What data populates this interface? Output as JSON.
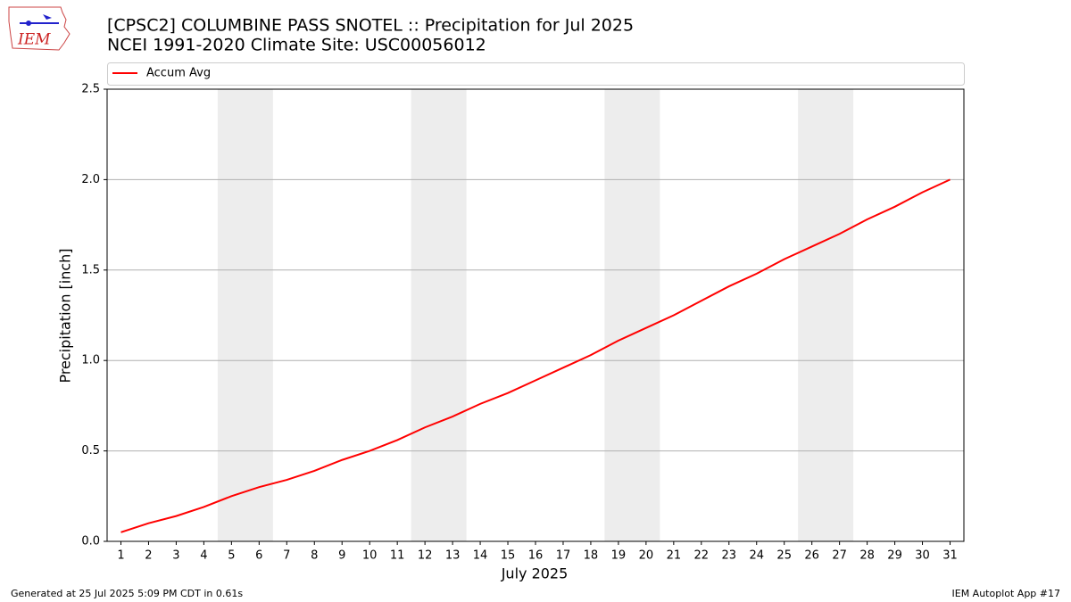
{
  "logo_text": "IEM",
  "chart_data": {
    "type": "line",
    "title": "[CPSC2] COLUMBINE PASS SNOTEL :: Precipitation for Jul 2025",
    "subtitle": "NCEI 1991-2020 Climate Site: USC00056012",
    "x_label": "July 2025",
    "y_label": "Precipitation [inch]",
    "x": [
      1,
      2,
      3,
      4,
      5,
      6,
      7,
      8,
      9,
      10,
      11,
      12,
      13,
      14,
      15,
      16,
      17,
      18,
      19,
      20,
      21,
      22,
      23,
      24,
      25,
      26,
      27,
      28,
      29,
      30,
      31
    ],
    "series": [
      {
        "name": "Accum Avg",
        "color": "#ff0000",
        "values": [
          0.05,
          0.1,
          0.14,
          0.19,
          0.25,
          0.3,
          0.34,
          0.39,
          0.45,
          0.5,
          0.56,
          0.63,
          0.69,
          0.76,
          0.82,
          0.89,
          0.96,
          1.03,
          1.11,
          1.18,
          1.25,
          1.33,
          1.41,
          1.48,
          1.56,
          1.63,
          1.7,
          1.78,
          1.85,
          1.93,
          2.0
        ]
      }
    ],
    "weekend_spans": [
      [
        4.5,
        6.5
      ],
      [
        11.5,
        13.5
      ],
      [
        18.5,
        20.5
      ],
      [
        25.5,
        27.5
      ]
    ],
    "shade_color": "#ededed",
    "xlim": [
      0.5,
      31.5
    ],
    "xticks": [
      1,
      2,
      3,
      4,
      5,
      6,
      7,
      8,
      9,
      10,
      11,
      12,
      13,
      14,
      15,
      16,
      17,
      18,
      19,
      20,
      21,
      22,
      23,
      24,
      25,
      26,
      27,
      28,
      29,
      30,
      31
    ],
    "ylim": [
      0,
      2.5
    ],
    "yticks": [
      {
        "value": 0,
        "label": "0.0"
      },
      0.5,
      {
        "value": 1,
        "label": "1.0"
      },
      1.5,
      {
        "value": 2,
        "label": "2.0"
      },
      2.5
    ],
    "grid": true,
    "legend": "top",
    "footer_left": "Generated at 25 Jul 2025 5:09 PM CDT in 0.61s",
    "footer_right": "IEM Autoplot App #17"
  }
}
